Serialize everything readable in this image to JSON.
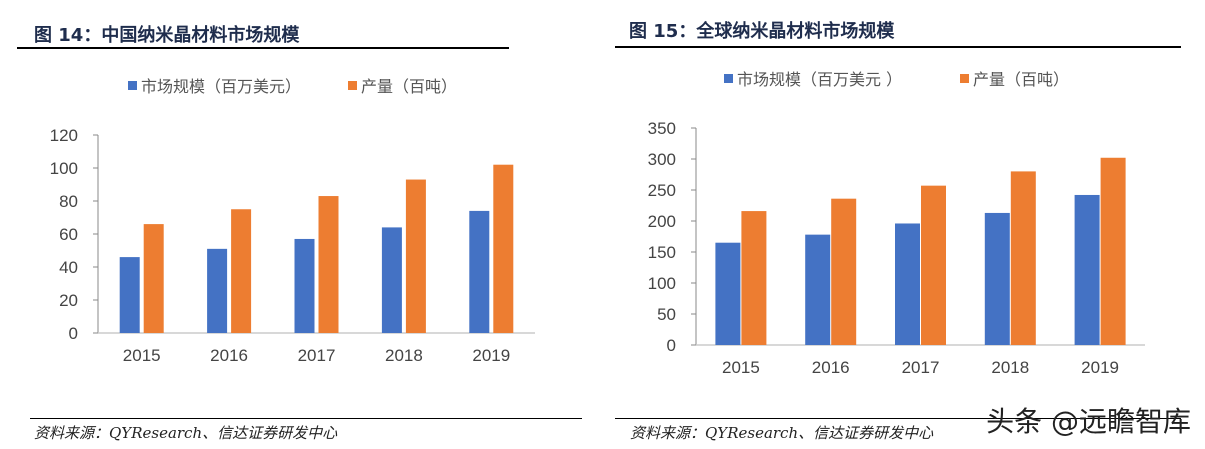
{
  "chart_data": [
    {
      "type": "bar",
      "title": "图 14：中国纳米晶材料市场规模",
      "categories": [
        "2015",
        "2016",
        "2017",
        "2018",
        "2019"
      ],
      "series": [
        {
          "name": "市场规模（百万美元）",
          "color": "#4472c4",
          "values": [
            46,
            51,
            57,
            64,
            74
          ]
        },
        {
          "name": "产量（百吨）",
          "color": "#ed7d31",
          "values": [
            66,
            75,
            83,
            93,
            102
          ]
        }
      ],
      "ylim": [
        0,
        120
      ],
      "yticks": [
        "0",
        "20",
        "40",
        "60",
        "80",
        "100",
        "120"
      ],
      "grid": false,
      "legend": "top",
      "source": "资料来源：QYResearch、信达证券研发中心"
    },
    {
      "type": "bar",
      "title": "图 15：全球纳米晶材料市场规模",
      "categories": [
        "2015",
        "2016",
        "2017",
        "2018",
        "2019"
      ],
      "series": [
        {
          "name": "市场规模（百万美元 ）",
          "color": "#4472c4",
          "values": [
            165,
            178,
            196,
            213,
            242
          ]
        },
        {
          "name": "产量（百吨）",
          "color": "#ed7d31",
          "values": [
            216,
            236,
            257,
            280,
            302
          ]
        }
      ],
      "ylim": [
        0,
        350
      ],
      "yticks": [
        "0",
        "50",
        "100",
        "150",
        "200",
        "250",
        "300",
        "350"
      ],
      "grid": false,
      "legend": "top",
      "source": "资料来源：QYResearch、信达证券研发中心"
    }
  ],
  "watermark": "头条 @远瞻智库"
}
